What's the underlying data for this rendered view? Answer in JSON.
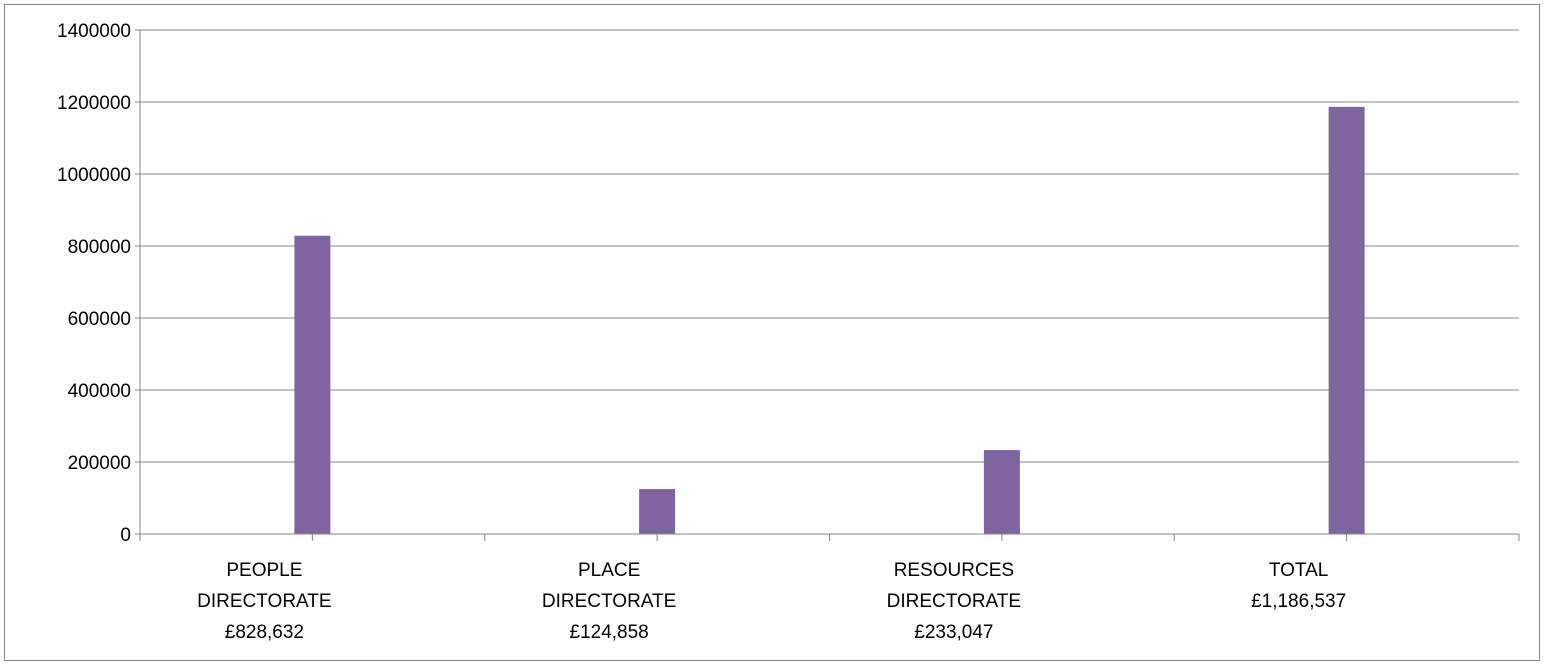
{
  "chart_data": {
    "type": "bar",
    "title": "",
    "xlabel": "",
    "ylabel": "",
    "categories": [
      [
        "PEOPLE",
        "DIRECTORATE",
        "£828,632"
      ],
      [
        "PLACE",
        "DIRECTORATE",
        "£124,858"
      ],
      [
        "RESOURCES",
        "DIRECTORATE",
        "£233,047"
      ],
      [
        "TOTAL",
        "£1,186,537"
      ]
    ],
    "series": [
      {
        "values": [
          828632,
          124858,
          233047,
          1186537
        ],
        "color": "#8064a2"
      }
    ],
    "ylim": [
      0,
      1400000
    ],
    "yticks": [
      0,
      200000,
      400000,
      600000,
      800000,
      1000000,
      1200000,
      1400000
    ],
    "ytick_labels": [
      "0",
      "200000",
      "400000",
      "600000",
      "800000",
      "1000000",
      "1200000",
      "1400000"
    ],
    "grid": true,
    "legend": "none",
    "colors": {
      "bar": "#8064a2",
      "grid": "#868686",
      "axis": "#868686",
      "frame": "#868686"
    }
  }
}
